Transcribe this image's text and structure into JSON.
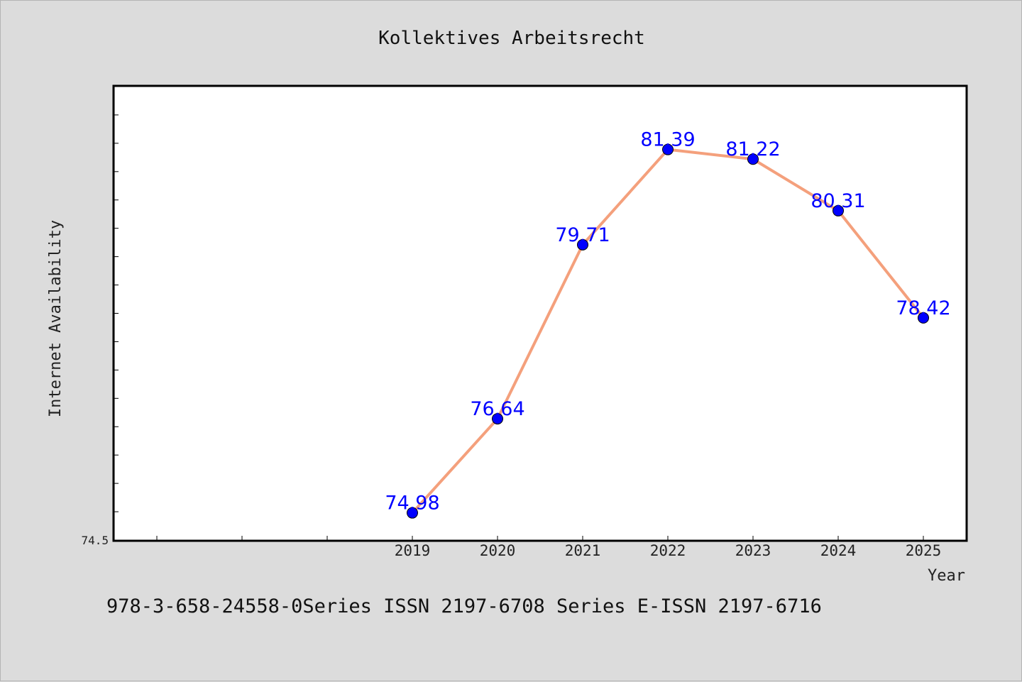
{
  "colors": {
    "background": "#dcdcdc",
    "plot_background": "#ffffff",
    "line": "#f4a07c",
    "marker": "#0000ff",
    "data_label": "#0000ff"
  },
  "footer": "978-3-658-24558-0Series ISSN 2197-6708 Series E-ISSN 2197-6716",
  "chart_data": {
    "type": "line",
    "title": "Kollektives Arbeitsrecht",
    "xlabel": "Year",
    "ylabel": "Internet Availability",
    "x": [
      "2019",
      "2020",
      "2021",
      "2022",
      "2023",
      "2024",
      "2025"
    ],
    "series": [
      {
        "values": [
          74.98,
          76.64,
          79.71,
          81.39,
          81.22,
          80.31,
          78.42
        ]
      }
    ],
    "data_labels": [
      "74.98",
      "76.64",
      "79.71",
      "81.39",
      "81.22",
      "80.31",
      "78.42"
    ],
    "ylim": [
      74.5,
      82.5
    ],
    "yticks": [
      "74.5"
    ],
    "grid": false,
    "legend": "none"
  }
}
